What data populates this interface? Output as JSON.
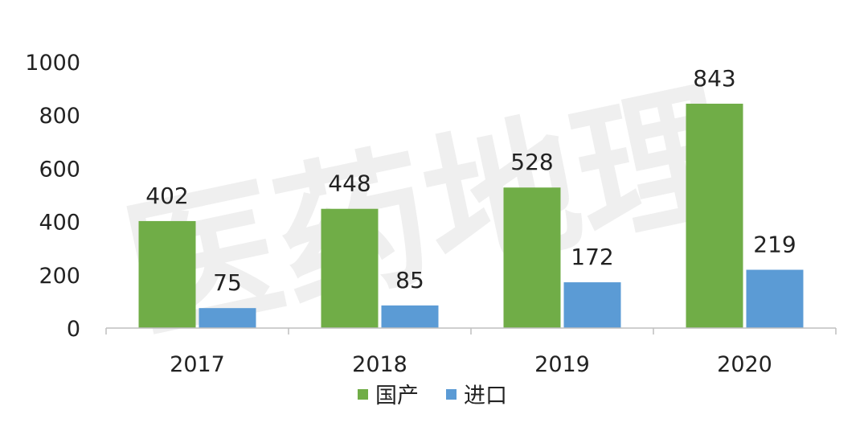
{
  "watermark": "医药地理",
  "chart_data": {
    "type": "bar",
    "categories": [
      "2017",
      "2018",
      "2019",
      "2020"
    ],
    "series": [
      {
        "name": "国产",
        "values": [
          402,
          448,
          528,
          843
        ],
        "color": "#70ad47"
      },
      {
        "name": "进口",
        "values": [
          75,
          85,
          172,
          219
        ],
        "color": "#5b9bd5"
      }
    ],
    "yticks": [
      "0",
      "200",
      "400",
      "600",
      "800",
      "1000"
    ],
    "ylim": [
      0,
      1000
    ],
    "grid": false,
    "legend": "bottom",
    "data_labels": true
  }
}
